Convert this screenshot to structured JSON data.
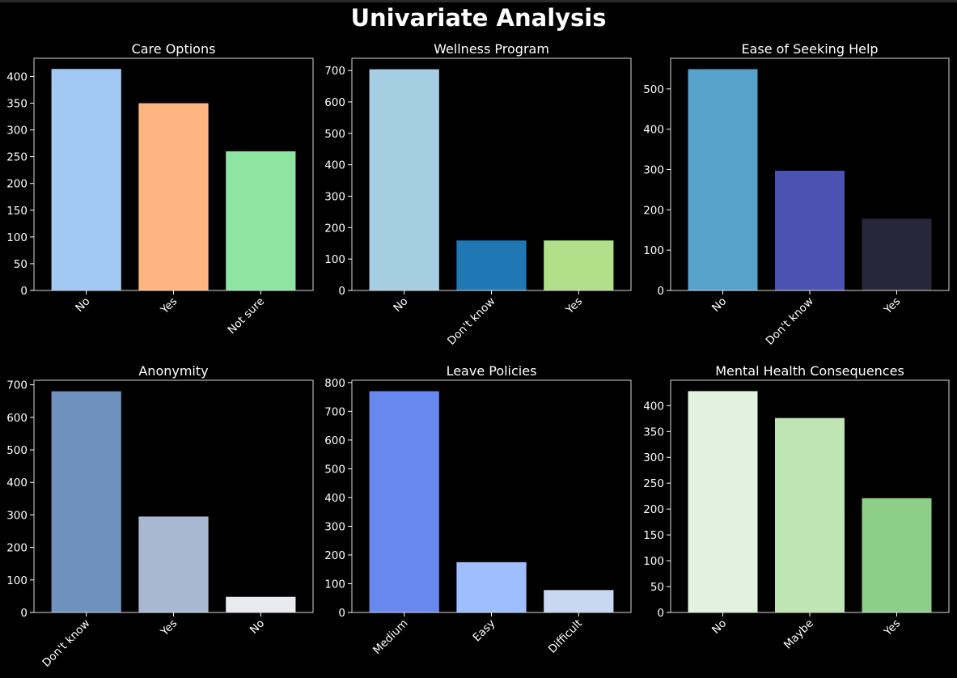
{
  "page": {
    "title": "Univariate Analysis"
  },
  "chart_data": [
    {
      "type": "bar",
      "title": "Care Options",
      "categories": [
        "No",
        "Yes",
        "Not sure"
      ],
      "values": [
        414,
        350,
        260
      ],
      "colors": [
        "#a1c9f4",
        "#ffb482",
        "#8de5a1"
      ],
      "ylim": [
        0,
        434
      ],
      "yticks": [
        0,
        50,
        100,
        150,
        200,
        250,
        300,
        350,
        400
      ],
      "grid": false
    },
    {
      "type": "bar",
      "title": "Wellness Program",
      "categories": [
        "No",
        "Don't know",
        "Yes"
      ],
      "values": [
        704,
        159,
        159
      ],
      "colors": [
        "#a6cee3",
        "#1f78b4",
        "#b2df8a"
      ],
      "ylim": [
        0,
        739
      ],
      "yticks": [
        0,
        100,
        200,
        300,
        400,
        500,
        600,
        700
      ],
      "grid": false
    },
    {
      "type": "bar",
      "title": "Ease of Seeking Help",
      "categories": [
        "No",
        "Don't know",
        "Yes"
      ],
      "values": [
        549,
        297,
        178
      ],
      "colors": [
        "#56a2cb",
        "#4a53b1",
        "#28273a"
      ],
      "ylim": [
        0,
        576
      ],
      "yticks": [
        0,
        100,
        200,
        300,
        400,
        500
      ],
      "grid": false
    },
    {
      "type": "bar",
      "title": "Anonymity",
      "categories": [
        "Don't know",
        "Yes",
        "No"
      ],
      "values": [
        680,
        295,
        48
      ],
      "colors": [
        "#6f91bd",
        "#a9b8d1",
        "#e9eaee"
      ],
      "ylim": [
        0,
        714
      ],
      "yticks": [
        0,
        100,
        200,
        300,
        400,
        500,
        600,
        700
      ],
      "grid": false
    },
    {
      "type": "bar",
      "title": "Leave Policies",
      "categories": [
        "Medium",
        "Easy",
        "Difficult"
      ],
      "values": [
        770,
        175,
        78
      ],
      "colors": [
        "#6788ee",
        "#9ebeff",
        "#c9d7f0"
      ],
      "ylim": [
        0,
        808
      ],
      "yticks": [
        0,
        100,
        200,
        300,
        400,
        500,
        600,
        700,
        800
      ],
      "grid": false
    },
    {
      "type": "bar",
      "title": "Mental Health Consequences",
      "categories": [
        "No",
        "Maybe",
        "Yes"
      ],
      "values": [
        428,
        376,
        221
      ],
      "colors": [
        "#e1f3de",
        "#bee5b3",
        "#8ecf88"
      ],
      "ylim": [
        0,
        449
      ],
      "yticks": [
        0,
        50,
        100,
        150,
        200,
        250,
        300,
        350,
        400
      ],
      "grid": false
    }
  ]
}
